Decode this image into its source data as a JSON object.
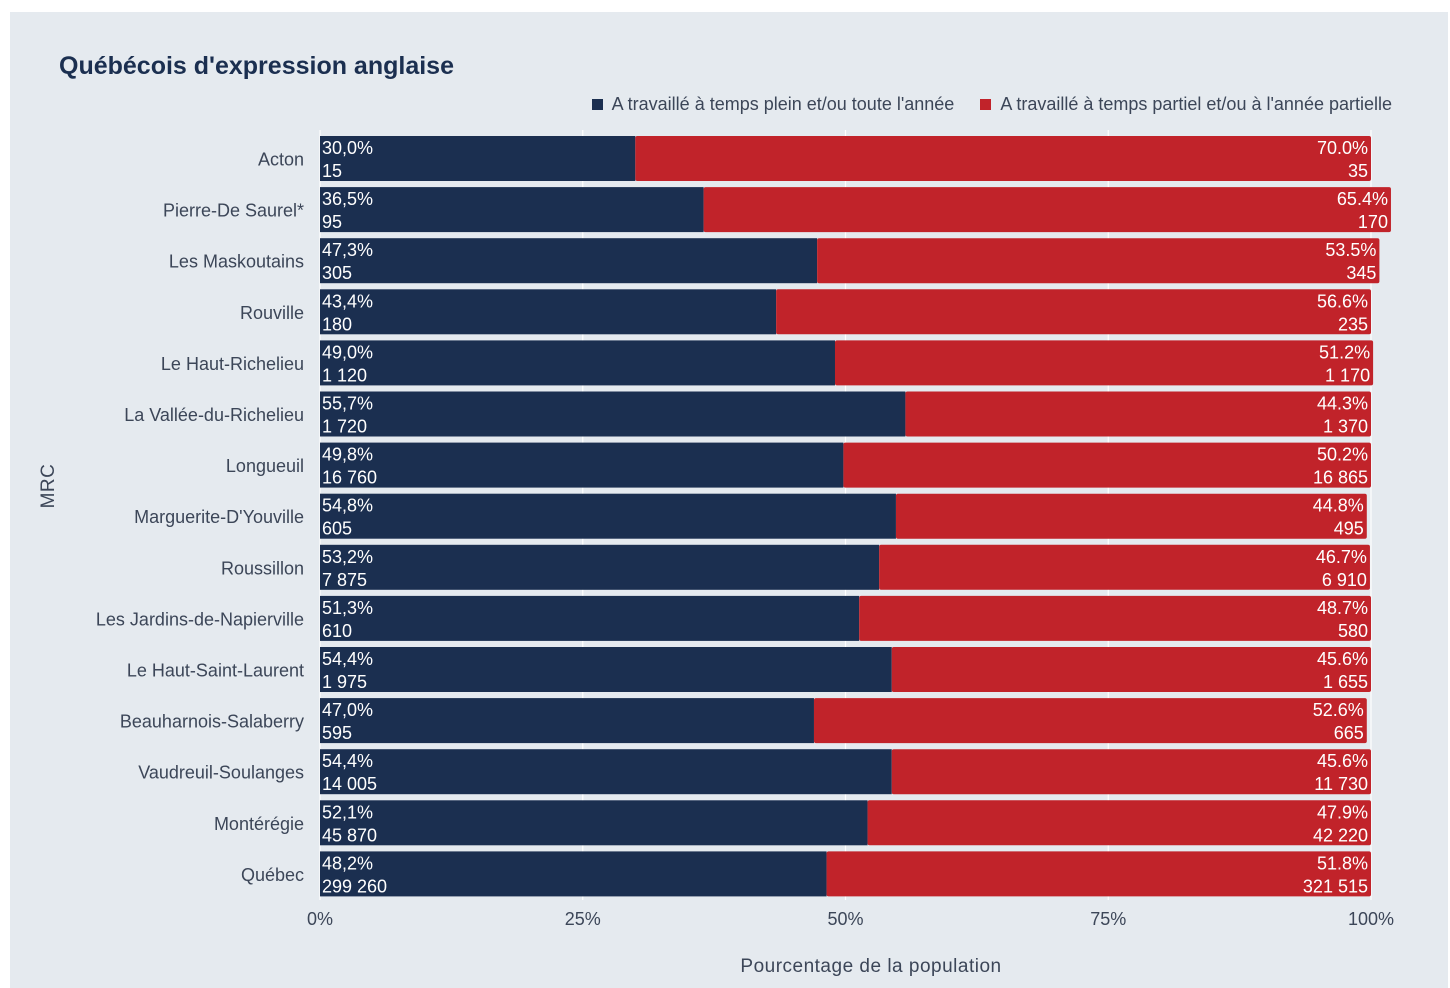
{
  "chart_data": {
    "type": "bar",
    "orientation": "horizontal",
    "stacked": true,
    "title": "Québécois d'expression anglaise",
    "xlabel": "Pourcentage de la population",
    "ylabel": "MRC",
    "xlim": [
      0,
      100
    ],
    "x_ticks": [
      "0%",
      "25%",
      "50%",
      "75%",
      "100%"
    ],
    "grid": true,
    "legend_position": "top-right",
    "categories": [
      "Acton",
      "Pierre-De Saurel*",
      "Les Maskoutains",
      "Rouville",
      "Le Haut-Richelieu",
      "La Vallée-du-Richelieu",
      "Longueuil",
      "Marguerite-D'Youville",
      "Roussillon",
      "Les Jardins-de-Napierville",
      "Le Haut-Saint-Laurent",
      "Beauharnois-Salaberry",
      "Vaudreuil-Soulanges",
      "Montérégie",
      "Québec"
    ],
    "series": [
      {
        "name": "A travaillé à temps plein et/ou toute l'année",
        "color": "#1b2f50",
        "values": [
          30.0,
          36.5,
          47.3,
          43.4,
          49.0,
          55.7,
          49.8,
          54.8,
          53.2,
          51.3,
          54.4,
          47.0,
          54.4,
          52.1,
          48.2
        ],
        "pct_labels": [
          "30,0%",
          "36,5%",
          "47,3%",
          "43,4%",
          "49,0%",
          "55,7%",
          "49,8%",
          "54,8%",
          "53,2%",
          "51,3%",
          "54,4%",
          "47,0%",
          "54,4%",
          "52,1%",
          "48,2%"
        ],
        "count_labels": [
          "15",
          "95",
          "305",
          "180",
          "1 120",
          "1 720",
          "16 760",
          "605",
          "7 875",
          "610",
          "1 975",
          "595",
          "14 005",
          "45 870",
          "299 260"
        ]
      },
      {
        "name": "A travaillé à temps partiel et/ou à l'année partielle",
        "color": "#c1232a",
        "values": [
          70.0,
          65.4,
          53.5,
          56.6,
          51.2,
          44.3,
          50.2,
          44.8,
          46.7,
          48.7,
          45.6,
          52.6,
          45.6,
          47.9,
          51.8
        ],
        "pct_labels": [
          "70.0%",
          "65.4%",
          "53.5%",
          "56.6%",
          "51.2%",
          "44.3%",
          "50.2%",
          "44.8%",
          "46.7%",
          "48.7%",
          "45.6%",
          "52.6%",
          "45.6%",
          "47.9%",
          "51.8%"
        ],
        "count_labels": [
          "35",
          "170",
          "345",
          "235",
          "1 170",
          "1 370",
          "16 865",
          "495",
          "6 910",
          "580",
          "1 655",
          "665",
          "11 730",
          "42 220",
          "321 515"
        ]
      }
    ]
  }
}
